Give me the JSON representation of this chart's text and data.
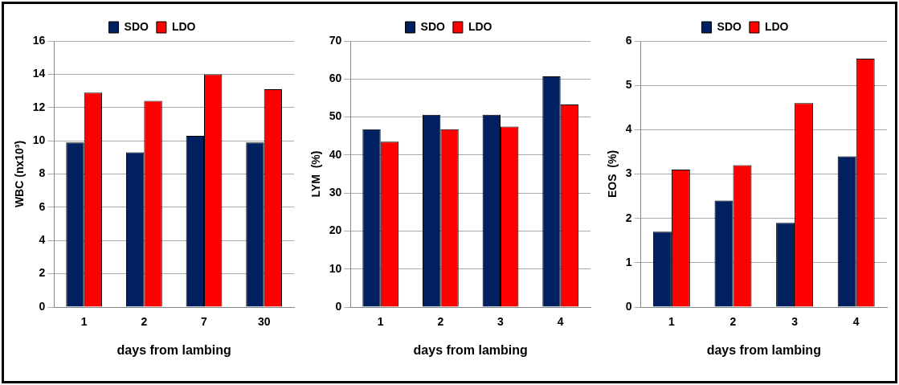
{
  "chart_data": [
    {
      "type": "bar",
      "xlabel": "days from lambing",
      "ylabel": "WBC (nx10³)",
      "categories": [
        "1",
        "2",
        "7",
        "30"
      ],
      "series": [
        {
          "name": "SDO",
          "color": "#002060",
          "values": [
            9.9,
            9.3,
            10.3,
            9.9
          ]
        },
        {
          "name": "LDO",
          "color": "#ff0000",
          "values": [
            12.9,
            12.4,
            14.0,
            13.1
          ]
        }
      ],
      "ylim": [
        0,
        16
      ],
      "yticks": [
        0,
        2,
        4,
        6,
        8,
        10,
        12,
        14,
        16
      ],
      "grid": "y",
      "legend": "top"
    },
    {
      "type": "bar",
      "xlabel": "days from lambing",
      "ylabel": "LYM  (%)",
      "categories": [
        "1",
        "2",
        "3",
        "4"
      ],
      "series": [
        {
          "name": "SDO",
          "color": "#002060",
          "values": [
            46.8,
            50.6,
            50.6,
            60.7
          ]
        },
        {
          "name": "LDO",
          "color": "#ff0000",
          "values": [
            43.5,
            46.8,
            47.5,
            53.3
          ]
        }
      ],
      "ylim": [
        0,
        70
      ],
      "yticks": [
        0,
        10,
        20,
        30,
        40,
        50,
        60,
        70
      ],
      "grid": "y",
      "legend": "top"
    },
    {
      "type": "bar",
      "xlabel": "days from lambing",
      "ylabel": "EOS  (%)",
      "categories": [
        "1",
        "2",
        "3",
        "4"
      ],
      "series": [
        {
          "name": "SDO",
          "color": "#002060",
          "values": [
            1.7,
            2.4,
            1.9,
            3.4
          ]
        },
        {
          "name": "LDO",
          "color": "#ff0000",
          "values": [
            3.1,
            3.2,
            4.6,
            5.6
          ]
        }
      ],
      "ylim": [
        0,
        6
      ],
      "yticks": [
        0,
        1,
        2,
        3,
        4,
        5,
        6
      ],
      "grid": "y",
      "legend": "top"
    }
  ]
}
